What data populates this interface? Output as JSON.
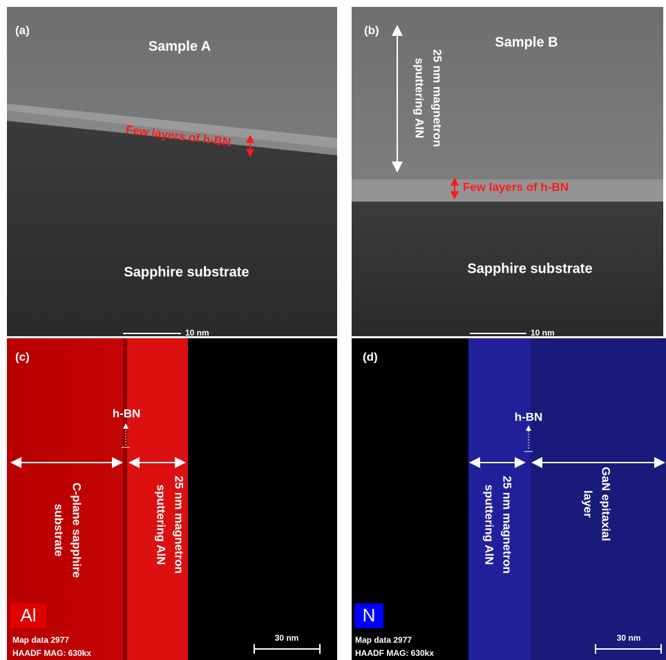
{
  "panels": [
    {
      "label": "(a)",
      "title": "Sample A",
      "annotation": "Few layers of h-BN",
      "substrate": "Sapphire substrate",
      "scale_bar": "10 nm"
    },
    {
      "label": "(b)",
      "title": "Sample B",
      "side_label": [
        "25 nm magnetron",
        "sputtering AlN"
      ],
      "annotation": "Few layers of h-BN",
      "substrate": "Sapphire substrate",
      "scale_bar": "10 nm"
    },
    {
      "label": "(c)",
      "interface": "h-BN",
      "left_label": [
        "C-plane sapphire",
        "substrate"
      ],
      "right_label": [
        "25 nm magnetron",
        "sputtering AlN"
      ],
      "element": "Al",
      "map_info": [
        "Map data 2977",
        "HAADF  MAG: 630kx"
      ],
      "scale_bar": "30 nm"
    },
    {
      "label": "(d)",
      "interface": "h-BN",
      "left_label": [
        "25 nm magnetron",
        "sputtering AlN"
      ],
      "right_label": [
        "GaN epitaxial",
        "layer"
      ],
      "element": "N",
      "map_info": [
        "Map data 2977",
        "HAADF  MAG: 630kx"
      ],
      "scale_bar": "30 nm"
    }
  ]
}
